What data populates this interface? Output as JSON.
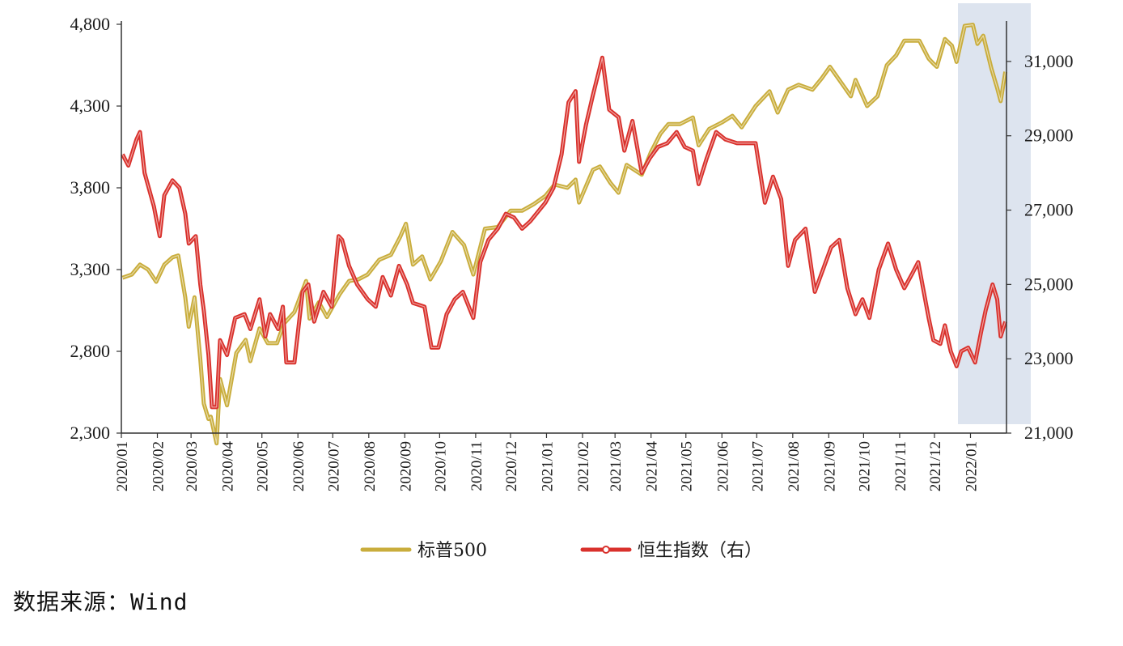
{
  "chart_data": {
    "type": "line",
    "x_ticks": [
      "2020/01",
      "2020/02",
      "2020/03",
      "2020/04",
      "2020/05",
      "2020/06",
      "2020/07",
      "2020/08",
      "2020/09",
      "2020/10",
      "2020/11",
      "2020/12",
      "2021/01",
      "2021/02",
      "2021/03",
      "2021/04",
      "2021/05",
      "2021/06",
      "2021/07",
      "2021/08",
      "2021/09",
      "2021/10",
      "2021/11",
      "2021/12",
      "2022/01"
    ],
    "y_left": {
      "ticks": [
        "2,300",
        "2,800",
        "3,300",
        "3,800",
        "4,300",
        "4,800"
      ],
      "range": [
        2300,
        4800
      ]
    },
    "y_right": {
      "ticks": [
        "21,000",
        "23,000",
        "25,000",
        "27,000",
        "29,000",
        "31,000"
      ],
      "range": [
        21000,
        32000
      ]
    },
    "highlight_period": [
      "2021-12-24",
      "2022-01-31"
    ],
    "grid": false,
    "legend_position": "bottom",
    "series": [
      {
        "name": "标普500",
        "axis": "left",
        "color": "#c9ad3c",
        "points": [
          [
            "2020-01-02",
            3250
          ],
          [
            "2020-01-10",
            3270
          ],
          [
            "2020-01-17",
            3330
          ],
          [
            "2020-01-24",
            3300
          ],
          [
            "2020-01-31",
            3225
          ],
          [
            "2020-02-07",
            3330
          ],
          [
            "2020-02-14",
            3375
          ],
          [
            "2020-02-19",
            3386
          ],
          [
            "2020-02-25",
            3130
          ],
          [
            "2020-02-28",
            2950
          ],
          [
            "2020-03-04",
            3130
          ],
          [
            "2020-03-09",
            2750
          ],
          [
            "2020-03-12",
            2480
          ],
          [
            "2020-03-16",
            2386
          ],
          [
            "2020-03-18",
            2400
          ],
          [
            "2020-03-23",
            2237
          ],
          [
            "2020-03-26",
            2630
          ],
          [
            "2020-04-01",
            2470
          ],
          [
            "2020-04-09",
            2790
          ],
          [
            "2020-04-17",
            2870
          ],
          [
            "2020-04-21",
            2740
          ],
          [
            "2020-04-29",
            2940
          ],
          [
            "2020-05-06",
            2850
          ],
          [
            "2020-05-14",
            2850
          ],
          [
            "2020-05-20",
            2970
          ],
          [
            "2020-05-29",
            3040
          ],
          [
            "2020-06-08",
            3230
          ],
          [
            "2020-06-11",
            3000
          ],
          [
            "2020-06-19",
            3100
          ],
          [
            "2020-06-26",
            3010
          ],
          [
            "2020-07-07",
            3150
          ],
          [
            "2020-07-15",
            3230
          ],
          [
            "2020-07-23",
            3240
          ],
          [
            "2020-07-31",
            3270
          ],
          [
            "2020-08-10",
            3360
          ],
          [
            "2020-08-20",
            3390
          ],
          [
            "2020-08-28",
            3500
          ],
          [
            "2020-09-02",
            3580
          ],
          [
            "2020-09-08",
            3330
          ],
          [
            "2020-09-16",
            3380
          ],
          [
            "2020-09-23",
            3240
          ],
          [
            "2020-10-02",
            3350
          ],
          [
            "2020-10-12",
            3530
          ],
          [
            "2020-10-22",
            3450
          ],
          [
            "2020-10-30",
            3270
          ],
          [
            "2020-11-09",
            3550
          ],
          [
            "2020-11-20",
            3560
          ],
          [
            "2020-12-01",
            3660
          ],
          [
            "2020-12-11",
            3660
          ],
          [
            "2020-12-21",
            3700
          ],
          [
            "2020-12-31",
            3750
          ],
          [
            "2021-01-08",
            3820
          ],
          [
            "2021-01-19",
            3800
          ],
          [
            "2021-01-26",
            3850
          ],
          [
            "2021-01-29",
            3710
          ],
          [
            "2021-02-10",
            3910
          ],
          [
            "2021-02-16",
            3930
          ],
          [
            "2021-02-25",
            3830
          ],
          [
            "2021-03-04",
            3770
          ],
          [
            "2021-03-11",
            3940
          ],
          [
            "2021-03-24",
            3880
          ],
          [
            "2021-04-01",
            4020
          ],
          [
            "2021-04-09",
            4130
          ],
          [
            "2021-04-16",
            4190
          ],
          [
            "2021-04-26",
            4190
          ],
          [
            "2021-05-07",
            4230
          ],
          [
            "2021-05-12",
            4060
          ],
          [
            "2021-05-21",
            4160
          ],
          [
            "2021-06-01",
            4200
          ],
          [
            "2021-06-10",
            4240
          ],
          [
            "2021-06-18",
            4170
          ],
          [
            "2021-06-30",
            4300
          ],
          [
            "2021-07-12",
            4390
          ],
          [
            "2021-07-19",
            4260
          ],
          [
            "2021-07-28",
            4400
          ],
          [
            "2021-08-06",
            4430
          ],
          [
            "2021-08-18",
            4400
          ],
          [
            "2021-08-26",
            4470
          ],
          [
            "2021-09-02",
            4540
          ],
          [
            "2021-09-10",
            4460
          ],
          [
            "2021-09-20",
            4360
          ],
          [
            "2021-09-24",
            4460
          ],
          [
            "2021-10-04",
            4300
          ],
          [
            "2021-10-13",
            4360
          ],
          [
            "2021-10-21",
            4550
          ],
          [
            "2021-10-29",
            4610
          ],
          [
            "2021-11-05",
            4700
          ],
          [
            "2021-11-18",
            4700
          ],
          [
            "2021-11-26",
            4590
          ],
          [
            "2021-11-30",
            4560
          ],
          [
            "2021-12-03",
            4540
          ],
          [
            "2021-12-10",
            4710
          ],
          [
            "2021-12-16",
            4670
          ],
          [
            "2021-12-20",
            4570
          ],
          [
            "2021-12-27",
            4790
          ],
          [
            "2022-01-03",
            4797
          ],
          [
            "2022-01-07",
            4680
          ],
          [
            "2022-01-12",
            4730
          ],
          [
            "2022-01-19",
            4530
          ],
          [
            "2022-01-24",
            4410
          ],
          [
            "2022-01-27",
            4330
          ],
          [
            "2022-01-31",
            4510
          ]
        ]
      },
      {
        "name": "恒生指数（右）",
        "axis": "right",
        "color": "#d9312c",
        "points": [
          [
            "2020-01-02",
            28500
          ],
          [
            "2020-01-07",
            28200
          ],
          [
            "2020-01-14",
            28900
          ],
          [
            "2020-01-17",
            29100
          ],
          [
            "2020-01-21",
            28000
          ],
          [
            "2020-01-29",
            27100
          ],
          [
            "2020-02-03",
            26300
          ],
          [
            "2020-02-07",
            27400
          ],
          [
            "2020-02-14",
            27800
          ],
          [
            "2020-02-20",
            27600
          ],
          [
            "2020-02-25",
            26900
          ],
          [
            "2020-02-28",
            26100
          ],
          [
            "2020-03-05",
            26300
          ],
          [
            "2020-03-09",
            25000
          ],
          [
            "2020-03-12",
            24300
          ],
          [
            "2020-03-16",
            23100
          ],
          [
            "2020-03-19",
            21700
          ],
          [
            "2020-03-23",
            21700
          ],
          [
            "2020-03-26",
            23500
          ],
          [
            "2020-04-01",
            23100
          ],
          [
            "2020-04-08",
            24100
          ],
          [
            "2020-04-16",
            24200
          ],
          [
            "2020-04-21",
            23800
          ],
          [
            "2020-04-29",
            24600
          ],
          [
            "2020-05-04",
            23600
          ],
          [
            "2020-05-08",
            24200
          ],
          [
            "2020-05-15",
            23800
          ],
          [
            "2020-05-19",
            24400
          ],
          [
            "2020-05-22",
            22900
          ],
          [
            "2020-05-29",
            22900
          ],
          [
            "2020-06-05",
            24800
          ],
          [
            "2020-06-10",
            25000
          ],
          [
            "2020-06-15",
            24000
          ],
          [
            "2020-06-23",
            24800
          ],
          [
            "2020-06-30",
            24400
          ],
          [
            "2020-07-06",
            26300
          ],
          [
            "2020-07-09",
            26200
          ],
          [
            "2020-07-15",
            25500
          ],
          [
            "2020-07-22",
            25000
          ],
          [
            "2020-07-31",
            24600
          ],
          [
            "2020-08-07",
            24400
          ],
          [
            "2020-08-13",
            25200
          ],
          [
            "2020-08-20",
            24700
          ],
          [
            "2020-08-27",
            25500
          ],
          [
            "2020-09-03",
            25000
          ],
          [
            "2020-09-08",
            24500
          ],
          [
            "2020-09-18",
            24400
          ],
          [
            "2020-09-24",
            23300
          ],
          [
            "2020-09-30",
            23300
          ],
          [
            "2020-10-07",
            24200
          ],
          [
            "2020-10-14",
            24600
          ],
          [
            "2020-10-21",
            24800
          ],
          [
            "2020-10-30",
            24100
          ],
          [
            "2020-11-05",
            25600
          ],
          [
            "2020-11-12",
            26200
          ],
          [
            "2020-11-20",
            26500
          ],
          [
            "2020-11-27",
            26900
          ],
          [
            "2020-12-04",
            26800
          ],
          [
            "2020-12-11",
            26500
          ],
          [
            "2020-12-18",
            26700
          ],
          [
            "2020-12-31",
            27200
          ],
          [
            "2021-01-07",
            27600
          ],
          [
            "2021-01-14",
            28500
          ],
          [
            "2021-01-20",
            29900
          ],
          [
            "2021-01-26",
            30200
          ],
          [
            "2021-01-29",
            28300
          ],
          [
            "2021-02-04",
            29300
          ],
          [
            "2021-02-10",
            30100
          ],
          [
            "2021-02-18",
            31100
          ],
          [
            "2021-02-24",
            29700
          ],
          [
            "2021-03-04",
            29500
          ],
          [
            "2021-03-09",
            28600
          ],
          [
            "2021-03-16",
            29400
          ],
          [
            "2021-03-24",
            28000
          ],
          [
            "2021-03-31",
            28400
          ],
          [
            "2021-04-07",
            28700
          ],
          [
            "2021-04-15",
            28800
          ],
          [
            "2021-04-23",
            29100
          ],
          [
            "2021-04-30",
            28700
          ],
          [
            "2021-05-07",
            28600
          ],
          [
            "2021-05-12",
            27700
          ],
          [
            "2021-05-19",
            28400
          ],
          [
            "2021-05-27",
            29100
          ],
          [
            "2021-06-04",
            28900
          ],
          [
            "2021-06-14",
            28800
          ],
          [
            "2021-06-23",
            28800
          ],
          [
            "2021-06-30",
            28800
          ],
          [
            "2021-07-08",
            27200
          ],
          [
            "2021-07-15",
            27900
          ],
          [
            "2021-07-22",
            27300
          ],
          [
            "2021-07-28",
            25500
          ],
          [
            "2021-08-03",
            26200
          ],
          [
            "2021-08-12",
            26500
          ],
          [
            "2021-08-20",
            24800
          ],
          [
            "2021-08-27",
            25400
          ],
          [
            "2021-09-03",
            26000
          ],
          [
            "2021-09-10",
            26200
          ],
          [
            "2021-09-17",
            24900
          ],
          [
            "2021-09-24",
            24200
          ],
          [
            "2021-09-30",
            24600
          ],
          [
            "2021-10-06",
            24100
          ],
          [
            "2021-10-14",
            25400
          ],
          [
            "2021-10-22",
            26100
          ],
          [
            "2021-10-29",
            25400
          ],
          [
            "2021-11-05",
            24900
          ],
          [
            "2021-11-12",
            25300
          ],
          [
            "2021-11-17",
            25600
          ],
          [
            "2021-11-26",
            24100
          ],
          [
            "2021-11-30",
            23500
          ],
          [
            "2021-12-06",
            23400
          ],
          [
            "2021-12-10",
            23900
          ],
          [
            "2021-12-15",
            23200
          ],
          [
            "2021-12-20",
            22800
          ],
          [
            "2021-12-24",
            23200
          ],
          [
            "2021-12-30",
            23300
          ],
          [
            "2022-01-05",
            22900
          ],
          [
            "2022-01-10",
            23700
          ],
          [
            "2022-01-14",
            24300
          ],
          [
            "2022-01-20",
            25000
          ],
          [
            "2022-01-24",
            24600
          ],
          [
            "2022-01-27",
            23600
          ],
          [
            "2022-01-31",
            24000
          ]
        ]
      }
    ]
  },
  "source": "数据来源：Wind",
  "colors": {
    "highlight": "#dde4ef",
    "axis": "#333333"
  }
}
